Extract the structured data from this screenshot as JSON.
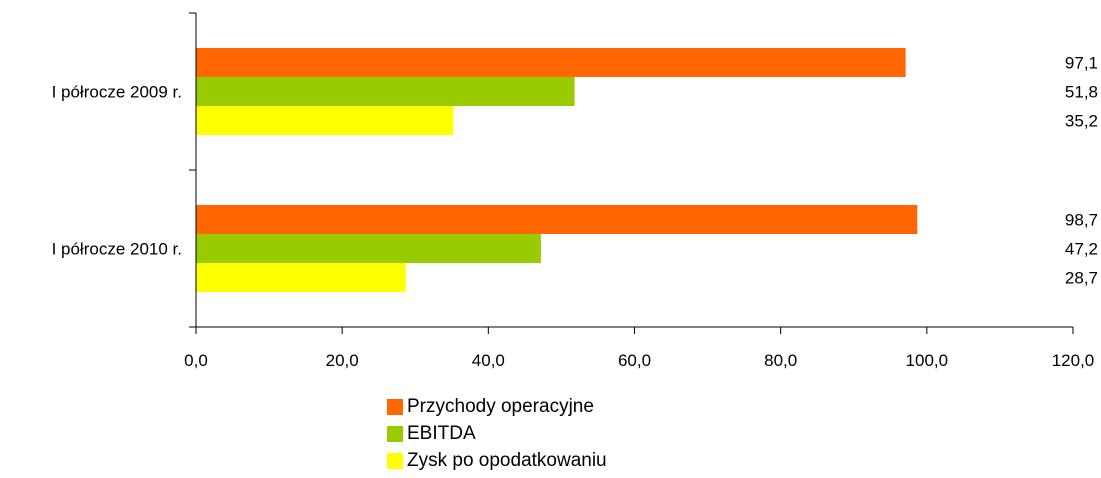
{
  "chart_data": {
    "type": "bar",
    "orientation": "horizontal",
    "categories": [
      "I półrocze 2009 r.",
      "I półrocze 2010 r."
    ],
    "series": [
      {
        "name": "Przychody operacyjne",
        "color": "#FF6600",
        "values": [
          97.1,
          98.7
        ],
        "labels": [
          "97,1",
          "98,7"
        ]
      },
      {
        "name": "EBITDA",
        "color": "#99CC00",
        "values": [
          51.8,
          47.2
        ],
        "labels": [
          "51,8",
          "47,2"
        ]
      },
      {
        "name": "Zysk po opodatkowaniu",
        "color": "#FFFF00",
        "values": [
          35.2,
          28.7
        ],
        "labels": [
          "35,2",
          "28,7"
        ]
      }
    ],
    "xlim": [
      0,
      120
    ],
    "x_ticks": [
      0,
      20,
      40,
      60,
      80,
      100,
      120
    ],
    "x_tick_labels": [
      "0,0",
      "20,0",
      "40,0",
      "60,0",
      "80,0",
      "100,0",
      "120,0"
    ],
    "title": "",
    "xlabel": "",
    "ylabel": "",
    "grid": false,
    "legend_position": "bottom"
  }
}
